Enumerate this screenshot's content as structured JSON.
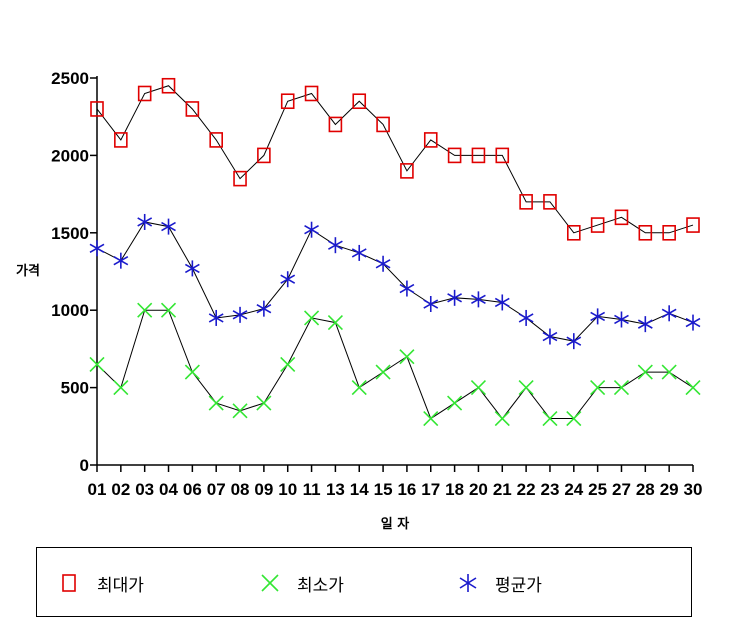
{
  "chart_data": {
    "type": "line",
    "xlabel": "일 자",
    "ylabel": "가격",
    "ylim": [
      0,
      2500
    ],
    "yticks": [
      0,
      500,
      1000,
      1500,
      2000,
      2500
    ],
    "categories": [
      "01",
      "02",
      "03",
      "04",
      "06",
      "07",
      "08",
      "09",
      "10",
      "11",
      "13",
      "14",
      "15",
      "16",
      "17",
      "18",
      "20",
      "21",
      "22",
      "23",
      "24",
      "25",
      "27",
      "28",
      "29",
      "30"
    ],
    "legend_position": "bottom",
    "series": [
      {
        "name": "최대가",
        "marker": "square",
        "color": "#e00000",
        "values": [
          2300,
          2100,
          2400,
          2450,
          2300,
          2100,
          1850,
          2000,
          2350,
          2400,
          2200,
          2350,
          2200,
          1900,
          2100,
          2000,
          2000,
          2000,
          1700,
          1700,
          1500,
          1550,
          1600,
          1500,
          1500,
          1550
        ]
      },
      {
        "name": "최소가",
        "marker": "x",
        "color": "#33e633",
        "values": [
          650,
          500,
          1000,
          1000,
          600,
          400,
          350,
          400,
          650,
          950,
          920,
          500,
          600,
          700,
          300,
          400,
          500,
          300,
          500,
          300,
          300,
          500,
          500,
          600,
          600,
          500
        ]
      },
      {
        "name": "평균가",
        "marker": "asterisk",
        "color": "#1a1acc",
        "values": [
          1400,
          1320,
          1570,
          1540,
          1270,
          950,
          970,
          1010,
          1200,
          1520,
          1420,
          1370,
          1300,
          1140,
          1040,
          1080,
          1070,
          1050,
          950,
          830,
          800,
          960,
          940,
          910,
          980,
          920
        ]
      }
    ]
  }
}
